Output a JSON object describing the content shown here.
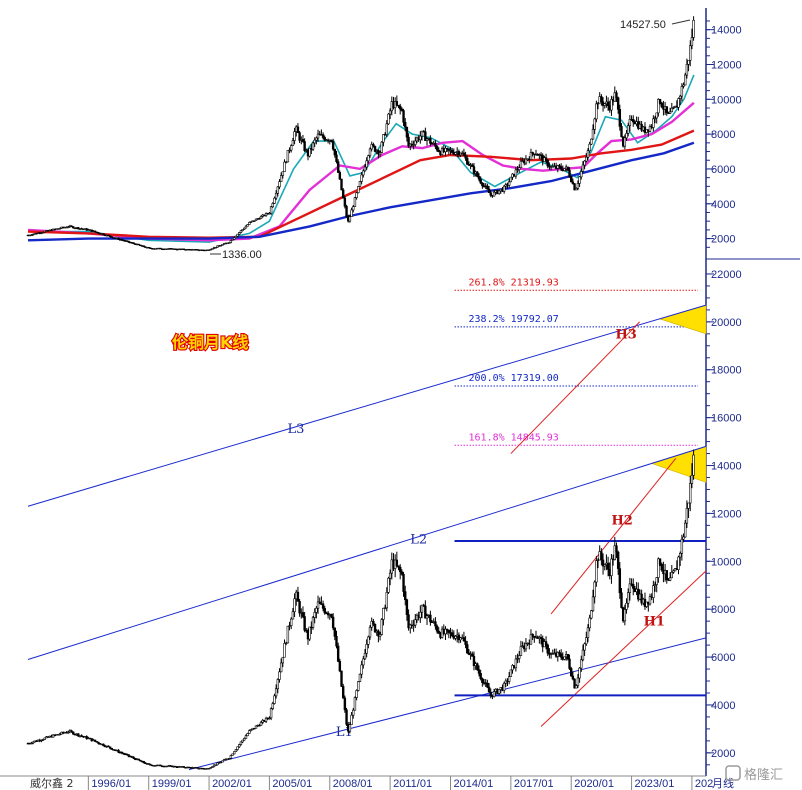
{
  "title": "伦铜月K线",
  "source_label": "威尔鑫 2",
  "watermark": "格隆汇",
  "period_label": "月线",
  "colors": {
    "candle": "#000000",
    "ma_cyan": "#1aa8b8",
    "ma_magenta": "#e22fd6",
    "ma_red": "#e01515",
    "ma_blue": "#1428c8",
    "channel": "#1a2acf",
    "h_channel": "#e02020",
    "fill": "#ffe000",
    "axis": "#1e2a8c"
  },
  "chart_data": [
    {
      "type": "candlestick",
      "panel": "upper",
      "ylim": [
        1000,
        14900
      ],
      "y_ticks": [
        2000,
        4000,
        6000,
        8000,
        10000,
        12000,
        14000
      ],
      "annotations": {
        "high": "14527.50",
        "low": "1336.00"
      },
      "series": [
        {
          "name": "",
          "kind": "price",
          "points": [
            [
              1993.0,
              2200
            ],
            [
              1995.0,
              2700
            ],
            [
              1996.0,
              2500
            ],
            [
              1999.0,
              1450
            ],
            [
              2001.9,
              1336
            ],
            [
              2003.0,
              1800
            ],
            [
              2004.0,
              2900
            ],
            [
              2005.0,
              3500
            ],
            [
              2006.3,
              8300
            ],
            [
              2006.9,
              6800
            ],
            [
              2007.4,
              7900
            ],
            [
              2008.1,
              7700
            ],
            [
              2008.9,
              2900
            ],
            [
              2009.5,
              5200
            ],
            [
              2010.0,
              7300
            ],
            [
              2010.5,
              7000
            ],
            [
              2011.1,
              9800
            ],
            [
              2011.6,
              9300
            ],
            [
              2011.9,
              7300
            ],
            [
              2012.6,
              8000
            ],
            [
              2013.5,
              7000
            ],
            [
              2014.5,
              7000
            ],
            [
              2015.5,
              5300
            ],
            [
              2016.0,
              4500
            ],
            [
              2016.7,
              4900
            ],
            [
              2017.5,
              6300
            ],
            [
              2018.2,
              7000
            ],
            [
              2019.0,
              6100
            ],
            [
              2019.8,
              6000
            ],
            [
              2020.2,
              4800
            ],
            [
              2020.9,
              7200
            ],
            [
              2021.3,
              10000
            ],
            [
              2021.9,
              9600
            ],
            [
              2022.2,
              10300
            ],
            [
              2022.6,
              7300
            ],
            [
              2023.0,
              9000
            ],
            [
              2023.6,
              8200
            ],
            [
              2024.0,
              8500
            ],
            [
              2024.4,
              10000
            ],
            [
              2024.8,
              9000
            ],
            [
              2025.2,
              9500
            ],
            [
              2025.6,
              11000
            ],
            [
              2025.9,
              12800
            ],
            [
              2026.1,
              14527
            ]
          ]
        },
        {
          "name": "",
          "kind": "moving-average",
          "color_key": "ma_cyan",
          "points": [
            [
              1993.0,
              2400
            ],
            [
              1996.0,
              2400
            ],
            [
              1999.0,
              1900
            ],
            [
              2002.0,
              1800
            ],
            [
              2004.0,
              2300
            ],
            [
              2005.0,
              3000
            ],
            [
              2006.2,
              6000
            ],
            [
              2007.2,
              7600
            ],
            [
              2008.2,
              7600
            ],
            [
              2009.0,
              5600
            ],
            [
              2009.7,
              5800
            ],
            [
              2010.6,
              7500
            ],
            [
              2011.3,
              8600
            ],
            [
              2012.1,
              8000
            ],
            [
              2013.0,
              7800
            ],
            [
              2014.0,
              7200
            ],
            [
              2015.0,
              5800
            ],
            [
              2016.2,
              5000
            ],
            [
              2017.5,
              5800
            ],
            [
              2018.5,
              6400
            ],
            [
              2019.5,
              6000
            ],
            [
              2020.3,
              5500
            ],
            [
              2021.0,
              7000
            ],
            [
              2021.7,
              9000
            ],
            [
              2022.5,
              8800
            ],
            [
              2023.3,
              7500
            ],
            [
              2024.2,
              8200
            ],
            [
              2025.0,
              9000
            ],
            [
              2025.6,
              10000
            ],
            [
              2026.1,
              11400
            ]
          ]
        },
        {
          "name": "",
          "kind": "moving-average",
          "color_key": "ma_magenta",
          "points": [
            [
              1993.0,
              2500
            ],
            [
              1996.0,
              2300
            ],
            [
              1999.0,
              2000
            ],
            [
              2002.0,
              1900
            ],
            [
              2004.0,
              2000
            ],
            [
              2005.5,
              2700
            ],
            [
              2007.0,
              4800
            ],
            [
              2008.5,
              6200
            ],
            [
              2009.5,
              6000
            ],
            [
              2010.6,
              6800
            ],
            [
              2011.6,
              7300
            ],
            [
              2012.6,
              7200
            ],
            [
              2013.6,
              7500
            ],
            [
              2014.6,
              7600
            ],
            [
              2015.6,
              6800
            ],
            [
              2016.6,
              6200
            ],
            [
              2017.6,
              6000
            ],
            [
              2018.6,
              5900
            ],
            [
              2019.6,
              6000
            ],
            [
              2020.6,
              6100
            ],
            [
              2021.3,
              6900
            ],
            [
              2022.0,
              7600
            ],
            [
              2023.0,
              7700
            ],
            [
              2024.0,
              8000
            ],
            [
              2025.0,
              8700
            ],
            [
              2026.1,
              9800
            ]
          ]
        },
        {
          "name": "",
          "kind": "moving-average",
          "color_key": "ma_red",
          "points": [
            [
              1993.0,
              2400
            ],
            [
              1996.0,
              2300
            ],
            [
              1999.0,
              2100
            ],
            [
              2002.0,
              2050
            ],
            [
              2004.5,
              2100
            ],
            [
              2006.5,
              3200
            ],
            [
              2008.5,
              4300
            ],
            [
              2010.5,
              5400
            ],
            [
              2012.5,
              6500
            ],
            [
              2014.0,
              6800
            ],
            [
              2016.0,
              6700
            ],
            [
              2018.0,
              6500
            ],
            [
              2020.0,
              6600
            ],
            [
              2021.5,
              6900
            ],
            [
              2023.0,
              7100
            ],
            [
              2024.5,
              7400
            ],
            [
              2026.1,
              8200
            ]
          ]
        },
        {
          "name": "",
          "kind": "moving-average",
          "color_key": "ma_blue",
          "points": [
            [
              1993.0,
              1900
            ],
            [
              1996.0,
              2000
            ],
            [
              1999.0,
              2000
            ],
            [
              2002.0,
              2000
            ],
            [
              2004.5,
              2100
            ],
            [
              2007.0,
              2700
            ],
            [
              2009.0,
              3300
            ],
            [
              2011.0,
              3800
            ],
            [
              2013.0,
              4200
            ],
            [
              2015.0,
              4600
            ],
            [
              2017.0,
              4900
            ],
            [
              2019.0,
              5300
            ],
            [
              2021.0,
              5900
            ],
            [
              2023.0,
              6500
            ],
            [
              2024.6,
              6900
            ],
            [
              2026.1,
              7500
            ]
          ]
        }
      ]
    },
    {
      "type": "candlestick",
      "panel": "lower",
      "ylim": [
        1200,
        22500
      ],
      "y_ticks": [
        2000,
        4000,
        6000,
        8000,
        10000,
        12000,
        14000,
        16000,
        18000,
        20000,
        22000
      ],
      "xlim": [
        1993.0,
        2026.7
      ],
      "x_ticks": [
        "1996/01",
        "1999/01",
        "2002/01",
        "2005/01",
        "2008/01",
        "2011/01",
        "2014/01",
        "2017/01",
        "2020/01",
        "2023/01",
        "202"
      ],
      "x_tick_values": [
        1996.0,
        1999.0,
        2002.0,
        2005.0,
        2008.0,
        2011.0,
        2014.0,
        2017.0,
        2020.0,
        2023.0,
        2026.0
      ],
      "fibonacci_levels": [
        {
          "pct": "261.8%",
          "value": "21319.93",
          "color_key": "ma_red"
        },
        {
          "pct": "238.2%",
          "value": "19792.07",
          "color_key": "ma_blue"
        },
        {
          "pct": "200.0%",
          "value": "17319.00",
          "color_key": "ma_blue"
        },
        {
          "pct": "161.8%",
          "value": "14845.93",
          "color_key": "ma_magenta"
        }
      ],
      "support_resistance": [
        {
          "from": 2014.2,
          "to": 2026.7,
          "y": 4400
        },
        {
          "from": 2014.2,
          "to": 2026.7,
          "y": 10850
        }
      ],
      "channel_lines": [
        {
          "label": "L1",
          "from": [
            2001.0,
            1300
          ],
          "to": [
            2026.7,
            6800
          ]
        },
        {
          "label": "L2",
          "from": [
            1993.0,
            5900
          ],
          "to": [
            2026.7,
            14800
          ]
        },
        {
          "label": "L3",
          "from": [
            1993.0,
            12300
          ],
          "to": [
            2026.7,
            20700
          ]
        }
      ],
      "h_lines": [
        {
          "label": "H1",
          "from": [
            2018.5,
            3100
          ],
          "to": [
            2026.7,
            9600
          ]
        },
        {
          "label": "H2",
          "from": [
            2019.0,
            7800
          ],
          "to": [
            2025.2,
            14300
          ]
        },
        {
          "label": "H3",
          "from": [
            2017.0,
            14500
          ],
          "to": [
            2023.4,
            20000
          ]
        }
      ],
      "series": [
        {
          "name": "",
          "kind": "price",
          "points": [
            [
              1993.0,
              2400
            ],
            [
              1995.0,
              2900
            ],
            [
              1996.0,
              2600
            ],
            [
              1999.0,
              1500
            ],
            [
              2001.9,
              1336
            ],
            [
              2003.0,
              1800
            ],
            [
              2004.0,
              2900
            ],
            [
              2005.0,
              3500
            ],
            [
              2006.3,
              8600
            ],
            [
              2006.9,
              6800
            ],
            [
              2007.4,
              8200
            ],
            [
              2008.1,
              7800
            ],
            [
              2008.9,
              2800
            ],
            [
              2009.5,
              5200
            ],
            [
              2010.0,
              7400
            ],
            [
              2010.5,
              7000
            ],
            [
              2011.1,
              10000
            ],
            [
              2011.6,
              9400
            ],
            [
              2011.9,
              7200
            ],
            [
              2012.6,
              8000
            ],
            [
              2013.5,
              7000
            ],
            [
              2014.5,
              6900
            ],
            [
              2015.5,
              5200
            ],
            [
              2016.0,
              4400
            ],
            [
              2016.7,
              4800
            ],
            [
              2017.5,
              6300
            ],
            [
              2018.2,
              7000
            ],
            [
              2019.0,
              6100
            ],
            [
              2019.8,
              6000
            ],
            [
              2020.2,
              4700
            ],
            [
              2020.9,
              7400
            ],
            [
              2021.3,
              10300
            ],
            [
              2021.9,
              9600
            ],
            [
              2022.2,
              10600
            ],
            [
              2022.6,
              7500
            ],
            [
              2023.0,
              9200
            ],
            [
              2023.6,
              8200
            ],
            [
              2024.0,
              8600
            ],
            [
              2024.4,
              10100
            ],
            [
              2024.8,
              9000
            ],
            [
              2025.2,
              9600
            ],
            [
              2025.6,
              11200
            ],
            [
              2025.9,
              13000
            ],
            [
              2026.1,
              14400
            ]
          ]
        }
      ]
    }
  ]
}
